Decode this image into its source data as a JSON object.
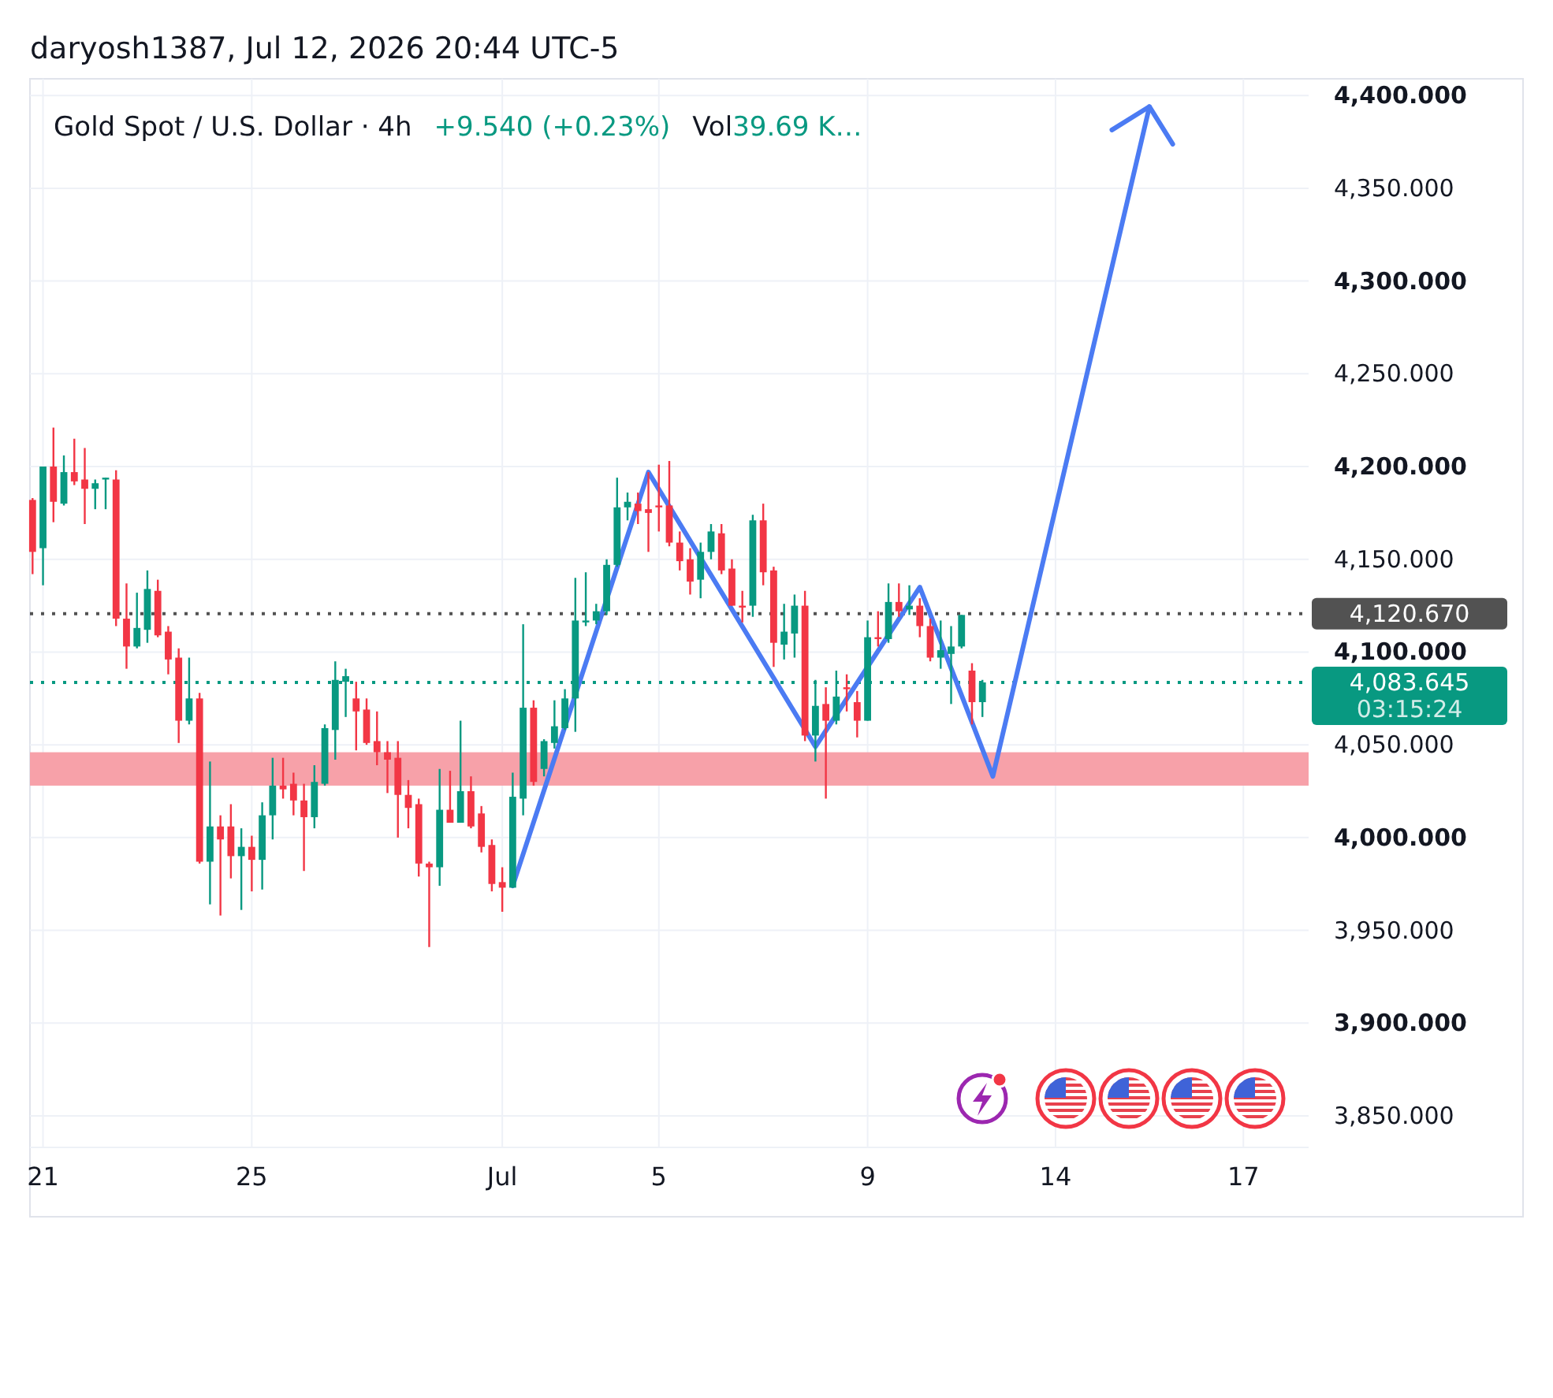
{
  "chart_data": {
    "type": "candlestick",
    "title": "Gold Spot / U.S. Dollar · 4h",
    "annotations": [
      "daryosh1387, Jul 12, 2026 20:44 UTC-5",
      "+9.540 (+0.23%)",
      "Vol",
      "39.69 K…"
    ],
    "categories": [
      null,
      "21",
      null,
      null,
      null,
      null,
      null,
      null,
      null,
      null,
      null,
      null,
      null,
      null,
      null,
      null,
      null,
      null,
      null,
      null,
      null,
      "25",
      null,
      null,
      null,
      null,
      null,
      null,
      null,
      null,
      null,
      null,
      null,
      null,
      null,
      null,
      null,
      null,
      null,
      null,
      null,
      null,
      null,
      null,
      null,
      "Jul",
      null,
      null,
      null,
      null,
      null,
      null,
      null,
      null,
      null,
      null,
      null,
      null,
      null,
      null,
      "5",
      null,
      null,
      null,
      null,
      null,
      null,
      null,
      null,
      null,
      null,
      null,
      null,
      null,
      null,
      null,
      null,
      null,
      null,
      null,
      "9",
      null,
      null,
      null,
      null,
      null,
      null,
      null,
      null,
      null,
      null,
      null,
      null,
      null,
      null,
      null,
      null,
      null,
      "14",
      null,
      null,
      null,
      null,
      null,
      null,
      null,
      null,
      null,
      null,
      null,
      null,
      null,
      null,
      null,
      null,
      null,
      "17",
      null,
      null,
      null,
      null,
      null,
      null
    ],
    "ylim": [
      3833,
      4409
    ],
    "yticks": [
      {
        "value": 3850,
        "label": "3,850.000"
      },
      {
        "value": 3900,
        "label": "3,900.000"
      },
      {
        "value": 3950,
        "label": "3,950.000"
      },
      {
        "value": 4000,
        "label": "4,000.000"
      },
      {
        "value": 4050,
        "label": "4,050.000"
      },
      {
        "value": 4100,
        "label": "4,100.000"
      },
      {
        "value": 4150,
        "label": "4,150.000"
      },
      {
        "value": 4200,
        "label": "4,200.000"
      },
      {
        "value": 4250,
        "label": "4,250.000"
      },
      {
        "value": 4300,
        "label": "4,300.000"
      },
      {
        "value": 4350,
        "label": "4,350.000"
      },
      {
        "value": 4400,
        "label": "4,400.000"
      }
    ],
    "grid": true,
    "ohlc": [
      [
        4182,
        4183,
        4142,
        4154
      ],
      [
        4156,
        4200,
        4136,
        4200
      ],
      [
        4200,
        4221,
        4170,
        4181
      ],
      [
        4180,
        4206,
        4179,
        4197
      ],
      [
        4197,
        4215,
        4190,
        4192
      ],
      [
        4193,
        4210,
        4169,
        4188
      ],
      [
        4188,
        4193,
        4177,
        4191
      ],
      [
        4193,
        4194,
        4177,
        4194
      ],
      [
        4193,
        4198,
        4114,
        4118
      ],
      [
        4118,
        4137,
        4091,
        4103
      ],
      [
        4103,
        4132,
        4102,
        4113
      ],
      [
        4112,
        4144,
        4105,
        4134
      ],
      [
        4133,
        4139,
        4108,
        4109
      ],
      [
        4111,
        4114,
        4088,
        4096
      ],
      [
        4097,
        4102,
        4051,
        4063
      ],
      [
        4063,
        4097,
        4061,
        4075
      ],
      [
        4075,
        4078,
        3986,
        3987
      ],
      [
        3987,
        4041,
        3964,
        4006
      ],
      [
        4006,
        4012,
        3958,
        3999
      ],
      [
        4006,
        4018,
        3978,
        3990
      ],
      [
        3990,
        4005,
        3961,
        3995
      ],
      [
        3995,
        4001,
        3971,
        3988
      ],
      [
        3988,
        4019,
        3972,
        4012
      ],
      [
        4012,
        4043,
        3999,
        4028
      ],
      [
        4028,
        4043,
        4021,
        4026
      ],
      [
        4029,
        4035,
        4012,
        4020
      ],
      [
        4020,
        4029,
        3982,
        4011
      ],
      [
        4011,
        4039,
        4005,
        4030
      ],
      [
        4029,
        4061,
        4028,
        4059
      ],
      [
        4058,
        4095,
        4042,
        4085
      ],
      [
        4084,
        4091,
        4065,
        4087
      ],
      [
        4075,
        4084,
        4047,
        4068
      ],
      [
        4069,
        4075,
        4050,
        4051
      ],
      [
        4052,
        4068,
        4039,
        4046
      ],
      [
        4046,
        4052,
        4024,
        4042
      ],
      [
        4043,
        4052,
        4000,
        4023
      ],
      [
        4023,
        4031,
        4005,
        4016
      ],
      [
        4018,
        4021,
        3979,
        3986
      ],
      [
        3986,
        3987,
        3941,
        3984
      ],
      [
        3984,
        4037,
        3974,
        4015
      ],
      [
        4015,
        4036,
        4008,
        4008
      ],
      [
        4008,
        4063,
        4008,
        4025
      ],
      [
        4025,
        4033,
        4005,
        4006
      ],
      [
        4013,
        4017,
        3992,
        3995
      ],
      [
        3996,
        3999,
        3971,
        3975
      ],
      [
        3976,
        3984,
        3960,
        3973
      ],
      [
        3973,
        4035,
        3973,
        4022
      ],
      [
        4021,
        4115,
        4012,
        4070
      ],
      [
        4070,
        4074,
        4028,
        4030
      ],
      [
        4037,
        4053,
        4033,
        4052
      ],
      [
        4051,
        4074,
        4048,
        4060
      ],
      [
        4059,
        4080,
        4058,
        4075
      ],
      [
        4075,
        4140,
        4057,
        4117
      ],
      [
        4116,
        4143,
        4114,
        4117
      ],
      [
        4117,
        4126,
        4115,
        4122
      ],
      [
        4122,
        4150,
        4120,
        4147
      ],
      [
        4147,
        4194,
        4146,
        4178
      ],
      [
        4178,
        4186,
        4171,
        4181
      ],
      [
        4180,
        4186,
        4169,
        4176
      ],
      [
        4177,
        4197,
        4154,
        4175
      ],
      [
        4179,
        4201,
        4165,
        4178
      ],
      [
        4179,
        4203,
        4157,
        4159
      ],
      [
        4159,
        4165,
        4144,
        4149
      ],
      [
        4150,
        4156,
        4131,
        4138
      ],
      [
        4139,
        4159,
        4129,
        4154
      ],
      [
        4154,
        4169,
        4150,
        4165
      ],
      [
        4164,
        4169,
        4142,
        4144
      ],
      [
        4145,
        4150,
        4125,
        4125
      ],
      [
        4125,
        4133,
        4116,
        4124
      ],
      [
        4125,
        4174,
        4119,
        4171
      ],
      [
        4171,
        4180,
        4136,
        4143
      ],
      [
        4144,
        4146,
        4092,
        4105
      ],
      [
        4104,
        4126,
        4096,
        4111
      ],
      [
        4110,
        4131,
        4097,
        4125
      ],
      [
        4125,
        4133,
        4052,
        4055
      ],
      [
        4055,
        4085,
        4041,
        4071
      ],
      [
        4072,
        4081,
        4021,
        4063
      ],
      [
        4063,
        4090,
        4061,
        4076
      ],
      [
        4081,
        4088,
        4068,
        4080
      ],
      [
        4073,
        4079,
        4054,
        4063
      ],
      [
        4063,
        4117,
        4063,
        4108
      ],
      [
        4108,
        4122,
        4103,
        4107
      ],
      [
        4107,
        4137,
        4105,
        4127
      ],
      [
        4127,
        4137,
        4119,
        4122
      ],
      [
        4123,
        4136,
        4120,
        4125
      ],
      [
        4125,
        4129,
        4108,
        4114
      ],
      [
        4114,
        4118,
        4095,
        4097
      ],
      [
        4097,
        4117,
        4091,
        4101
      ],
      [
        4099,
        4114,
        4072,
        4103
      ],
      [
        4103,
        4120,
        4102,
        4120
      ],
      [
        4090,
        4094,
        4061,
        4073
      ],
      [
        4073,
        4085,
        4065,
        4083.645
      ],
      null,
      null,
      null,
      null,
      null,
      null,
      null,
      null,
      null,
      null,
      null,
      null,
      null,
      null,
      null,
      null,
      null,
      null,
      null,
      null,
      null,
      null,
      null,
      null,
      null,
      null,
      null,
      null,
      null,
      null,
      null
    ],
    "colors": [
      "#f23645",
      "#089981",
      "#f23645",
      "#089981",
      "#f23645",
      "#f23645",
      "#089981",
      "#089981",
      "#f23645",
      "#f23645",
      "#089981",
      "#089981",
      "#f23645",
      "#f23645",
      "#f23645",
      "#089981",
      "#f23645",
      "#089981",
      "#f23645",
      "#f23645",
      "#089981",
      "#f23645",
      "#089981",
      "#089981",
      "#f23645",
      "#f23645",
      "#f23645",
      "#089981",
      "#089981",
      "#089981",
      "#089981",
      "#f23645",
      "#f23645",
      "#f23645",
      "#f23645",
      "#f23645",
      "#f23645",
      "#f23645",
      "#f23645",
      "#089981",
      "#f23645",
      "#089981",
      "#f23645",
      "#f23645",
      "#f23645",
      "#f23645",
      "#089981",
      "#089981",
      "#f23645",
      "#089981",
      "#089981",
      "#089981",
      "#089981",
      "#089981",
      "#089981",
      "#089981",
      "#089981",
      "#089981",
      "#f23645",
      "#f23645",
      "#f23645",
      "#f23645",
      "#f23645",
      "#f23645",
      "#089981",
      "#089981",
      "#f23645",
      "#f23645",
      "#f23645",
      "#089981",
      "#f23645",
      "#f23645",
      "#089981",
      "#089981",
      "#f23645",
      "#089981",
      "#f23645",
      "#089981",
      "#f23645",
      "#f23645",
      "#089981",
      "#f23645",
      "#089981",
      "#f23645",
      "#089981",
      "#f23645",
      "#f23645",
      "#089981",
      "#089981",
      "#089981",
      "#f23645",
      "#089981",
      null,
      null,
      null,
      null,
      null,
      null,
      null,
      null,
      null,
      null,
      null,
      null,
      null,
      null,
      null,
      null,
      null,
      null,
      null,
      null,
      null,
      null,
      null,
      null,
      null,
      null,
      null,
      null,
      null,
      null,
      null
    ],
    "series": [
      {
        "type": "line",
        "color": "#4b7bf3",
        "values": [
          null,
          null,
          null,
          null,
          null,
          null,
          null,
          null,
          null,
          null,
          null,
          null,
          null,
          null,
          null,
          null,
          null,
          null,
          null,
          null,
          null,
          null,
          null,
          null,
          null,
          null,
          null,
          null,
          null,
          null,
          null,
          null,
          null,
          null,
          null,
          null,
          null,
          null,
          null,
          null,
          null,
          null,
          null,
          null,
          null,
          null,
          3974,
          null,
          null,
          null,
          null,
          null,
          null,
          null,
          null,
          null,
          null,
          null,
          null,
          4197,
          null,
          null,
          null,
          null,
          null,
          null,
          null,
          null,
          null,
          null,
          null,
          null,
          null,
          null,
          null,
          4049,
          null,
          null,
          null,
          null,
          null,
          null,
          null,
          null,
          null,
          4135,
          null,
          null,
          null,
          null,
          null,
          null,
          4033,
          null,
          null,
          null,
          null,
          null,
          null,
          null,
          null,
          null,
          null,
          null,
          null,
          null,
          null,
          4394,
          null,
          null,
          null,
          null,
          null,
          null,
          null,
          null,
          null,
          null,
          null,
          null,
          null,
          null,
          null
        ]
      }
    ],
    "bands": [
      {
        "axis": "y",
        "from": 4028,
        "to": 4046,
        "color": "#f7a1a9"
      }
    ],
    "ref_lines": [
      {
        "axis": "y",
        "value": 4120.67,
        "label": "4,120.670",
        "color": "#525252",
        "line_style": "dotted"
      },
      {
        "axis": "y",
        "value": 4083.645,
        "label": "4,083.645\n03:15:24",
        "color": "#089981",
        "line_style": "dotted"
      }
    ]
  }
}
